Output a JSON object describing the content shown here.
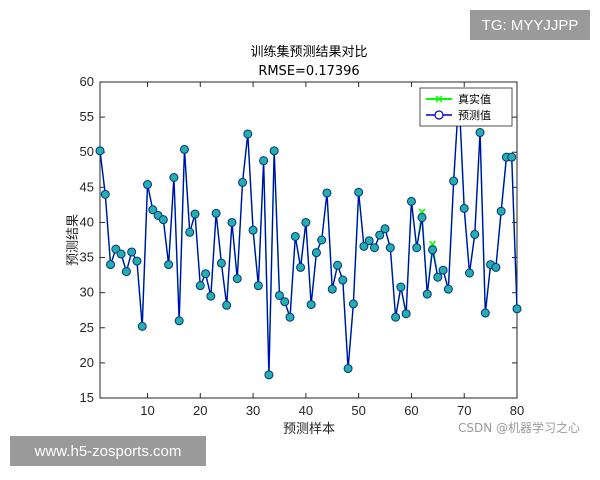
{
  "overlays": {
    "top_right": "TG: MYYJJPP",
    "bottom_left": "www.h5-zosports.com",
    "watermark": "CSDN @机器学习之心"
  },
  "colors": {
    "true_series": "#00ff00",
    "pred_series": "#0000cc",
    "pred_marker_fill": "#20b2aa",
    "axis": "#262626"
  },
  "chart_data": {
    "type": "line",
    "title": "训练集预测结果对比",
    "subtitle": "RMSE=0.17396",
    "xlabel": "预测样本",
    "ylabel": "预测结果",
    "xlim": [
      1,
      80
    ],
    "ylim": [
      15,
      60
    ],
    "xticks": [
      10,
      20,
      30,
      40,
      50,
      60,
      70,
      80
    ],
    "yticks": [
      15,
      20,
      25,
      30,
      35,
      40,
      45,
      50,
      55,
      60
    ],
    "legend_position": "top-right",
    "grid": false,
    "series": [
      {
        "name": "真实值",
        "marker": "x",
        "values": [
          50.2,
          44,
          34,
          36.2,
          35.5,
          33,
          35.8,
          34.5,
          25.2,
          45.4,
          41.8,
          41,
          40.4,
          34,
          46.4,
          26,
          50.4,
          38.6,
          41.2,
          31,
          32.7,
          29.5,
          41.3,
          34.2,
          28.2,
          40,
          32,
          45.7,
          52.6,
          38.9,
          31,
          48.8,
          18.3,
          50.2,
          29.6,
          28.7,
          26.5,
          38,
          33.6,
          40,
          28.3,
          35.7,
          37.5,
          44.2,
          30.5,
          33.9,
          31.8,
          19.2,
          28.4,
          44.3,
          36.6,
          37.4,
          36.4,
          38.2,
          39.1,
          36.4,
          26.5,
          30.8,
          27,
          43,
          36.4,
          41.5,
          29.8,
          36.9,
          32.2,
          33.2,
          30.5,
          45.9,
          58.4,
          42,
          32.8,
          38.3,
          52.8,
          27.1,
          34,
          33.6,
          41.6,
          49.3,
          49.3,
          27.7
        ]
      },
      {
        "name": "预测值",
        "marker": "o",
        "values": [
          50.2,
          44,
          34,
          36.2,
          35.5,
          33,
          35.8,
          34.5,
          25.2,
          45.4,
          41.8,
          41,
          40.4,
          34,
          46.4,
          26,
          50.4,
          38.6,
          41.2,
          31,
          32.7,
          29.5,
          41.3,
          34.2,
          28.2,
          40,
          32,
          45.7,
          52.6,
          38.9,
          31,
          48.8,
          18.3,
          50.2,
          29.6,
          28.7,
          26.5,
          38,
          33.6,
          40,
          28.3,
          35.7,
          37.5,
          44.2,
          30.5,
          33.9,
          31.8,
          19.2,
          28.4,
          44.3,
          36.6,
          37.4,
          36.4,
          38.2,
          39.1,
          36.4,
          26.5,
          30.8,
          27,
          43,
          36.4,
          40.7,
          29.8,
          36.1,
          32.2,
          33.2,
          30.5,
          45.9,
          58.2,
          42,
          32.8,
          38.3,
          52.8,
          27.1,
          34,
          33.6,
          41.6,
          49.3,
          49.3,
          27.7
        ]
      }
    ]
  }
}
